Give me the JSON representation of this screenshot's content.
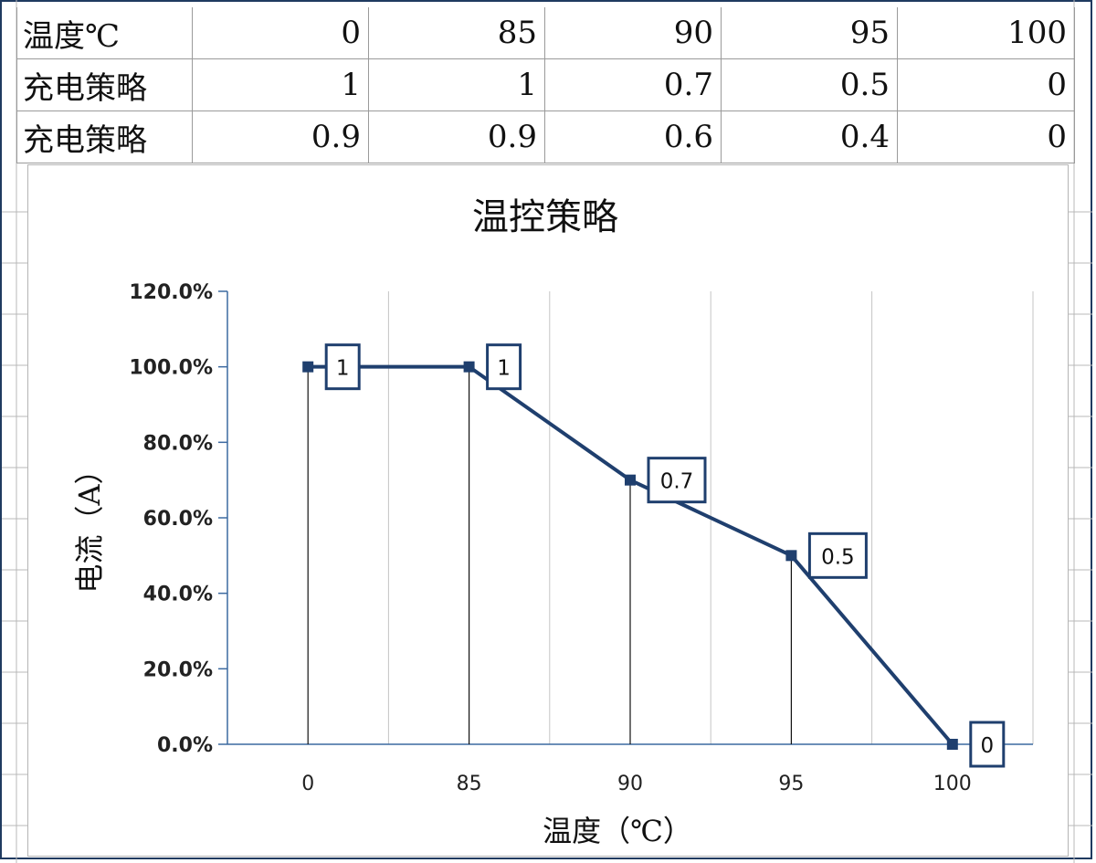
{
  "table": {
    "rows": [
      {
        "label": "温度℃",
        "cells": [
          "0",
          "85",
          "90",
          "95",
          "100"
        ]
      },
      {
        "label": "充电策略",
        "cells": [
          "1",
          "1",
          "0.7",
          "0.5",
          "0"
        ]
      },
      {
        "label": "充电策略",
        "cells": [
          "0.9",
          "0.9",
          "0.6",
          "0.4",
          "0"
        ]
      }
    ]
  },
  "chart_data": {
    "type": "line",
    "title": "温控策略",
    "xlabel": "温度（℃）",
    "ylabel": "电流（A）",
    "categories": [
      "0",
      "85",
      "90",
      "95",
      "100"
    ],
    "series": [
      {
        "values": [
          1,
          1,
          0.7,
          0.5,
          0
        ],
        "labels": [
          "1",
          "1",
          "0.7",
          "0.5",
          "0"
        ],
        "color": "#1f3f6e"
      }
    ],
    "yticks": [
      "0.0%",
      "20.0%",
      "40.0%",
      "60.0%",
      "80.0%",
      "100.0%",
      "120.0%"
    ],
    "ylim": [
      0,
      1.2
    ],
    "grid": "vertical",
    "legend": "none",
    "drop_lines": true
  }
}
